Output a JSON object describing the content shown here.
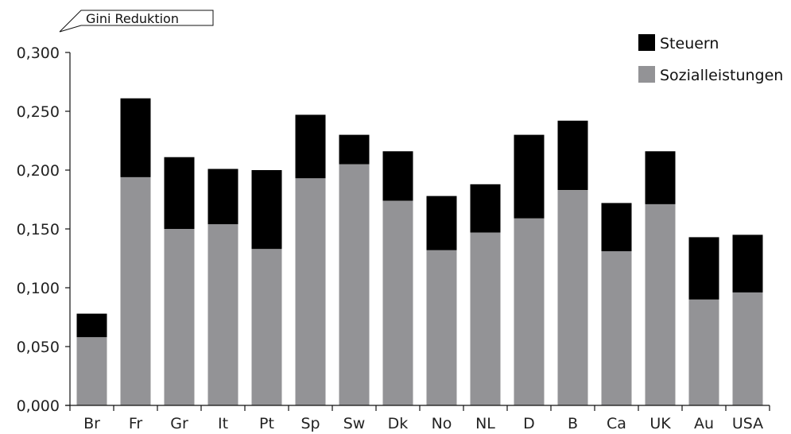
{
  "chart_data": {
    "type": "bar",
    "stacked": true,
    "ylabel": "Gini Reduktion",
    "categories": [
      "Br",
      "Fr",
      "Gr",
      "It",
      "Pt",
      "Sp",
      "Sw",
      "Dk",
      "No",
      "NL",
      "D",
      "B",
      "Ca",
      "UK",
      "Au",
      "USA"
    ],
    "series": [
      {
        "name": "Sozialleistungen",
        "color": "#939396",
        "values": [
          0.058,
          0.194,
          0.15,
          0.154,
          0.133,
          0.193,
          0.205,
          0.174,
          0.132,
          0.147,
          0.159,
          0.183,
          0.131,
          0.171,
          0.09,
          0.096
        ]
      },
      {
        "name": "Steuern",
        "color": "#000000",
        "values": [
          0.02,
          0.067,
          0.061,
          0.047,
          0.067,
          0.054,
          0.025,
          0.042,
          0.046,
          0.041,
          0.071,
          0.059,
          0.041,
          0.045,
          0.053,
          0.049
        ]
      }
    ],
    "ylim": [
      0,
      0.3
    ],
    "yticks": [
      "0,000",
      "0,050",
      "0,100",
      "0,150",
      "0,200",
      "0,250",
      "0,300"
    ],
    "legend_position": "top-right",
    "grid": false
  }
}
